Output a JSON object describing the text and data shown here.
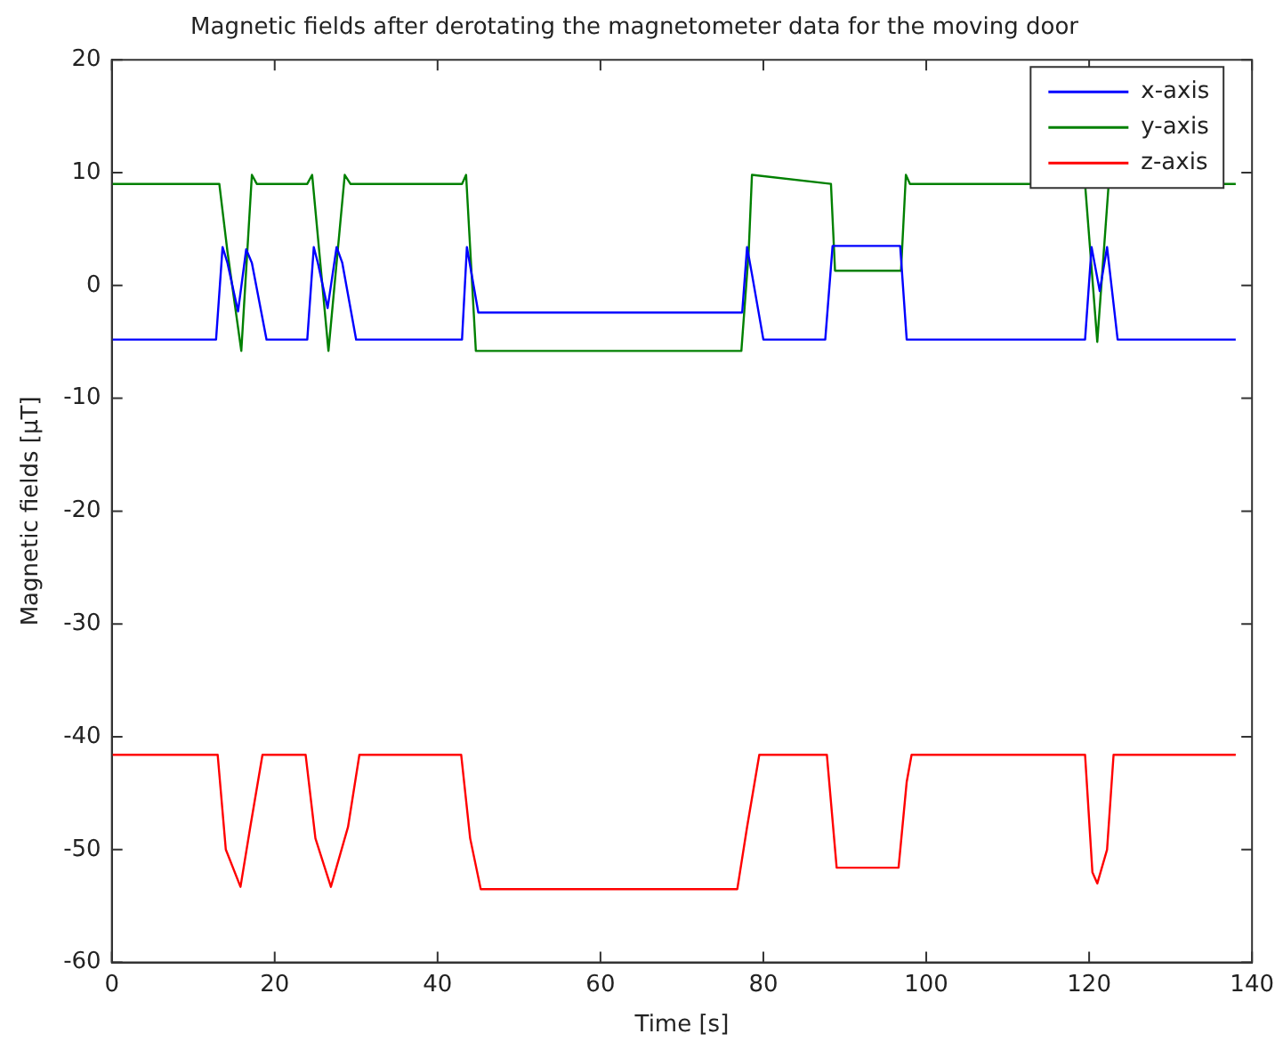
{
  "chart_data": {
    "type": "line",
    "title": "Magnetic fields after derotating the magnetometer data for the moving door",
    "xlabel": "Time [s]",
    "ylabel": "Magnetic fields [μT]",
    "xlim": [
      0,
      140
    ],
    "xticks": [
      0,
      20,
      40,
      60,
      80,
      100,
      120,
      140
    ],
    "ylim": [
      -60,
      20
    ],
    "yticks": [
      -60,
      -50,
      -40,
      -30,
      -20,
      -10,
      0,
      10,
      20
    ],
    "grid": false,
    "legend": "top right",
    "marker": "none",
    "line_style": "solid",
    "series": [
      {
        "name": "x-axis",
        "color": "#0000ff",
        "x": [
          0,
          12.8,
          13.6,
          14.2,
          15.5,
          16.5,
          17.2,
          19,
          24,
          24.8,
          25.3,
          26.5,
          27.6,
          28.3,
          30,
          43,
          43.6,
          45,
          77.4,
          78,
          78.6,
          80,
          87.6,
          88.5,
          96.8,
          97.6,
          119.5,
          120.3,
          121.3,
          122.2,
          123.5,
          138
        ],
        "values": [
          -4.8,
          -4.8,
          3.4,
          2,
          -2.3,
          3.2,
          2,
          -4.8,
          -4.8,
          3.4,
          2,
          -2,
          3.4,
          2,
          -4.8,
          -4.8,
          3.4,
          -2.4,
          -2.4,
          3.4,
          1,
          -4.8,
          -4.8,
          3.5,
          3.5,
          -4.8,
          -4.8,
          3.4,
          -0.5,
          3.4,
          -4.8,
          -4.8
        ]
      },
      {
        "name": "y-axis",
        "color": "#008000",
        "x": [
          0,
          13.2,
          14.2,
          15.9,
          17.2,
          17.8,
          24,
          24.6,
          26.6,
          28.6,
          29.3,
          43,
          43.5,
          44.7,
          77.3,
          78.2,
          78.6,
          88.3,
          88.8,
          96.9,
          97.5,
          98,
          119.5,
          121,
          122.4,
          138
        ],
        "values": [
          9,
          9,
          3,
          -5.8,
          9.8,
          9,
          9,
          9.8,
          -5.8,
          9.8,
          9,
          9,
          9.8,
          -5.8,
          -5.8,
          3,
          9.8,
          9,
          1.3,
          1.3,
          9.8,
          9,
          9,
          -5,
          9,
          9
        ]
      },
      {
        "name": "z-axis",
        "color": "#ff0000",
        "x": [
          0,
          13,
          14,
          15.8,
          17,
          18.5,
          23.8,
          25,
          26.9,
          29,
          30.4,
          42.9,
          44,
          45.3,
          76.8,
          78,
          79.5,
          87.8,
          89,
          96.6,
          97.6,
          98.2,
          119.5,
          120.4,
          121,
          122.2,
          123,
          138
        ],
        "values": [
          -41.6,
          -41.6,
          -50,
          -53.3,
          -48,
          -41.6,
          -41.6,
          -49,
          -53.3,
          -48,
          -41.6,
          -41.6,
          -49,
          -53.5,
          -53.5,
          -48,
          -41.6,
          -41.6,
          -51.6,
          -51.6,
          -44,
          -41.6,
          -41.6,
          -52,
          -53,
          -50,
          -41.6,
          -41.6
        ]
      }
    ]
  }
}
